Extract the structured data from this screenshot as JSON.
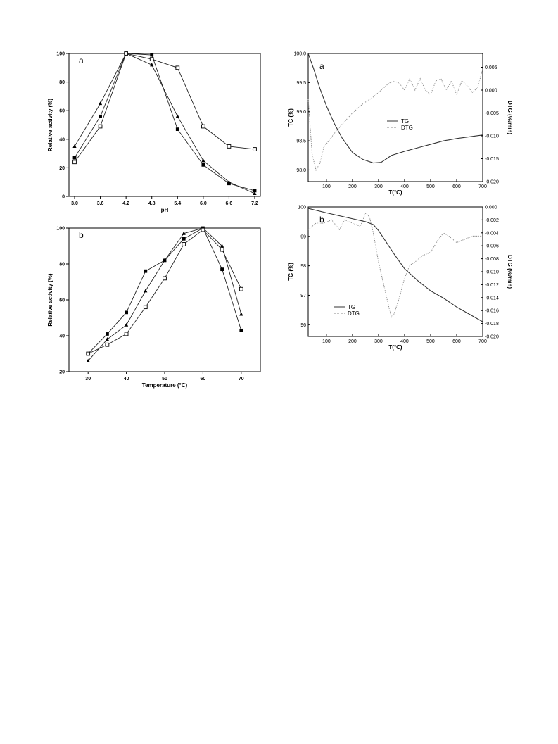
{
  "chart_data": [
    {
      "type": "line",
      "panel_label": "a",
      "xlabel": "pH",
      "ylabel": "Relative activity (%)",
      "categories": [
        "3.0",
        "3.6",
        "4.2",
        "4.8",
        "5.4",
        "6.0",
        "6.6",
        "7.2"
      ],
      "ylim": [
        0,
        100
      ],
      "yticks": [
        0,
        20,
        40,
        60,
        80,
        100
      ],
      "series": [
        {
          "marker": "triangle-filled",
          "values": [
            35,
            65,
            100,
            92,
            56,
            25,
            10,
            2
          ]
        },
        {
          "marker": "square-filled",
          "values": [
            27,
            56,
            100,
            99,
            47,
            22,
            9,
            4
          ]
        },
        {
          "marker": "square-open",
          "values": [
            24,
            49,
            100,
            96,
            90,
            49,
            35,
            33
          ]
        }
      ]
    },
    {
      "type": "line",
      "panel_label": "b",
      "xlabel": "Temperature (°C)",
      "ylabel": "Relative activity (%)",
      "x": [
        30,
        35,
        40,
        45,
        50,
        55,
        60,
        65,
        70
      ],
      "xlim": [
        25,
        75
      ],
      "xticks": [
        30,
        40,
        50,
        60,
        70
      ],
      "ylim": [
        20,
        100
      ],
      "yticks": [
        20,
        40,
        60,
        80,
        100
      ],
      "series": [
        {
          "marker": "triangle-filled",
          "values": [
            26,
            38,
            46,
            65,
            82,
            97,
            100,
            90,
            52
          ]
        },
        {
          "marker": "square-filled",
          "values": [
            30,
            41,
            53,
            76,
            82,
            94,
            100,
            77,
            43
          ]
        },
        {
          "marker": "square-open",
          "values": [
            30,
            35,
            41,
            56,
            72,
            91,
            99,
            88,
            66
          ]
        }
      ]
    },
    {
      "type": "line",
      "panel_label": "a",
      "xlabel": "T(°C)",
      "ylabel": "TG (%)",
      "y2label": "DTG (%/min)",
      "xlim": [
        30,
        700
      ],
      "xticks": [
        100,
        200,
        300,
        400,
        500,
        600,
        700
      ],
      "ylim": [
        97.8,
        100.0
      ],
      "yticks": [
        "98.0",
        "98.5",
        "99.0",
        "99.5",
        "100.0"
      ],
      "y2lim": [
        -0.02,
        0.008
      ],
      "y2ticks": [
        "-0.020",
        "-0.015",
        "-0.010",
        "-0.005",
        "0.000",
        "0.005"
      ],
      "legend": [
        "TG",
        "DTG"
      ],
      "series": [
        {
          "name": "TG",
          "axis": "left",
          "style": "solid",
          "x": [
            30,
            50,
            75,
            100,
            130,
            160,
            200,
            240,
            280,
            310,
            350,
            400,
            450,
            500,
            550,
            600,
            650,
            700
          ],
          "values": [
            100.0,
            99.75,
            99.4,
            99.1,
            98.8,
            98.55,
            98.3,
            98.18,
            98.12,
            98.13,
            98.25,
            98.32,
            98.38,
            98.44,
            98.5,
            98.54,
            98.57,
            98.6
          ]
        },
        {
          "name": "DTG",
          "axis": "right",
          "style": "dotted",
          "x": [
            30,
            45,
            60,
            75,
            90,
            110,
            130,
            160,
            200,
            240,
            280,
            310,
            340,
            360,
            380,
            400,
            420,
            440,
            460,
            480,
            500,
            520,
            540,
            560,
            580,
            600,
            620,
            640,
            660,
            680,
            700
          ],
          "values": [
            -0.002,
            -0.014,
            -0.0175,
            -0.016,
            -0.0125,
            -0.011,
            -0.0095,
            -0.0075,
            -0.005,
            -0.003,
            -0.0015,
            0.0,
            0.0015,
            0.002,
            0.0015,
            0.0,
            0.0025,
            0.0,
            0.0025,
            0.0,
            -0.001,
            0.002,
            0.0025,
            0.0,
            0.002,
            -0.001,
            0.002,
            0.001,
            -0.0005,
            0.0005,
            0.0045
          ]
        }
      ]
    },
    {
      "type": "line",
      "panel_label": "b",
      "xlabel": "T(°C)",
      "ylabel": "TG (%)",
      "y2label": "DTG (%/min)",
      "xlim": [
        30,
        700
      ],
      "xticks": [
        100,
        200,
        300,
        400,
        500,
        600,
        700
      ],
      "ylim": [
        95.6,
        100.0
      ],
      "yticks": [
        "96",
        "97",
        "98",
        "99",
        "100"
      ],
      "y2lim": [
        -0.02,
        0.0
      ],
      "y2ticks": [
        "-0.020",
        "-0.018",
        "-0.016",
        "-0.014",
        "-0.012",
        "-0.010",
        "-0.008",
        "-0.006",
        "-0.004",
        "-0.002",
        "0.000"
      ],
      "legend": [
        "TG",
        "DTG"
      ],
      "series": [
        {
          "name": "TG",
          "axis": "left",
          "style": "solid",
          "x": [
            30,
            100,
            200,
            250,
            280,
            300,
            330,
            360,
            400,
            450,
            500,
            550,
            600,
            650,
            700
          ],
          "values": [
            99.95,
            99.8,
            99.6,
            99.5,
            99.4,
            99.2,
            98.8,
            98.4,
            97.9,
            97.5,
            97.15,
            96.9,
            96.6,
            96.35,
            96.1
          ]
        },
        {
          "name": "DTG",
          "axis": "right",
          "style": "dotted",
          "x": [
            30,
            60,
            90,
            120,
            150,
            170,
            200,
            230,
            250,
            265,
            280,
            300,
            320,
            340,
            350,
            360,
            380,
            400,
            420,
            440,
            470,
            500,
            530,
            550,
            570,
            600,
            630,
            660,
            700
          ],
          "values": [
            -0.0035,
            -0.0025,
            -0.0025,
            -0.002,
            -0.0035,
            -0.002,
            -0.0025,
            -0.003,
            -0.001,
            -0.0015,
            -0.004,
            -0.0085,
            -0.012,
            -0.0155,
            -0.017,
            -0.0165,
            -0.014,
            -0.011,
            -0.009,
            -0.0085,
            -0.0075,
            -0.007,
            -0.005,
            -0.004,
            -0.0045,
            -0.0055,
            -0.005,
            -0.0045,
            -0.0045
          ]
        }
      ]
    }
  ]
}
